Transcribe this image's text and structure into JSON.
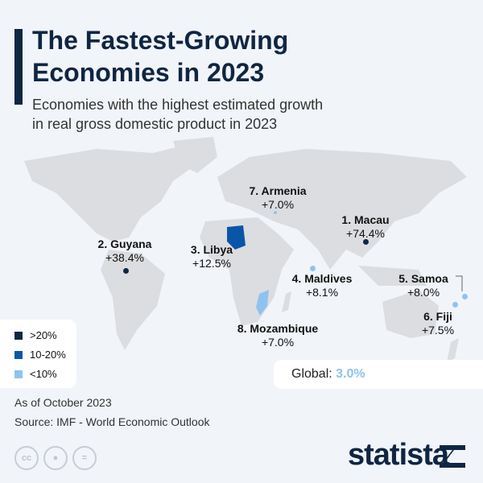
{
  "header": {
    "title_line1": "The Fastest-Growing",
    "title_line2": "Economies in 2023",
    "subtitle_line1": "Economies with the highest estimated growth",
    "subtitle_line2": "in real gross domestic product in 2023"
  },
  "countries": [
    {
      "rank_name": "1. Macau",
      "growth": "+74.4%",
      "category": ">20%"
    },
    {
      "rank_name": "2. Guyana",
      "growth": "+38.4%",
      "category": ">20%"
    },
    {
      "rank_name": "3. Libya",
      "growth": "+12.5%",
      "category": "10-20%"
    },
    {
      "rank_name": "4. Maldives",
      "growth": "+8.1%",
      "category": "<10%"
    },
    {
      "rank_name": "5. Samoa",
      "growth": "+8.0%",
      "category": "<10%"
    },
    {
      "rank_name": "6. Fiji",
      "growth": "+7.5%",
      "category": "<10%"
    },
    {
      "rank_name": "7. Armenia",
      "growth": "+7.0%",
      "category": "<10%"
    },
    {
      "rank_name": "8. Mozambique",
      "growth": "+7.0%",
      "category": "<10%"
    }
  ],
  "legend": [
    {
      "label": ">20%",
      "color": "#0f2643"
    },
    {
      "label": "10-20%",
      "color": "#0a55a8"
    },
    {
      "label": "<10%",
      "color": "#8fc3ef"
    }
  ],
  "global": {
    "label": "Global:",
    "value": "3.0%"
  },
  "footer": {
    "note": "As of October 2023",
    "source": "Source: IMF - World Economic Outlook"
  },
  "license_icons": [
    "cc-icon",
    "attribution-icon",
    "no-derivatives-icon"
  ],
  "logo": "statista",
  "colors": {
    "land": "#dcdde0",
    "background": "#f1f4f9"
  }
}
